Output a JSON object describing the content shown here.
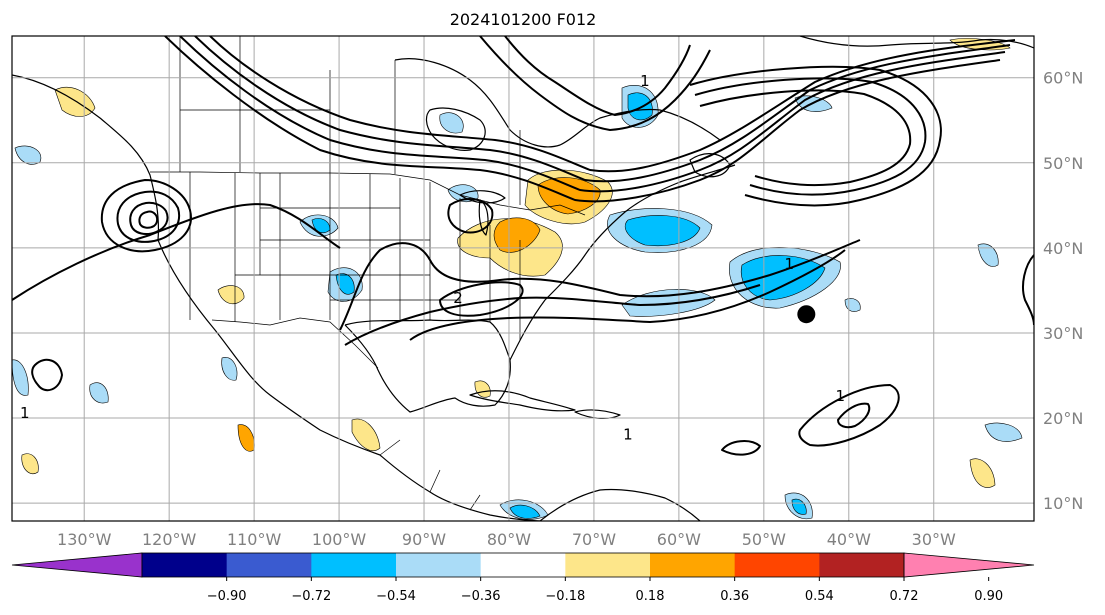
{
  "title": "2024101200 F012",
  "lon_labels": [
    "130°W",
    "120°W",
    "110°W",
    "100°W",
    "90°W",
    "80°W",
    "70°W",
    "60°W",
    "50°W",
    "40°W",
    "30°W"
  ],
  "lat_labels": [
    "60°N",
    "50°N",
    "40°N",
    "30°N",
    "20°N",
    "10°N"
  ],
  "contour_labels": [
    {
      "text": "1",
      "lon": -64,
      "lat": 59
    },
    {
      "text": "1",
      "lon": -47,
      "lat": 37.5
    },
    {
      "text": "1",
      "lon": -66,
      "lat": 17.5
    },
    {
      "text": "1",
      "lon": -41,
      "lat": 22
    },
    {
      "text": "1",
      "lon": -137,
      "lat": 20
    },
    {
      "text": "2",
      "lon": -86,
      "lat": 33.5
    }
  ],
  "colorbar": {
    "labels": [
      "−0.90",
      "−0.72",
      "−0.54",
      "−0.36",
      "−0.18",
      "0.18",
      "0.36",
      "0.54",
      "0.72",
      "0.90"
    ],
    "colors": [
      "#9932cc",
      "#00008b",
      "#3a5bd0",
      "#00bfff",
      "#aadcf7",
      "#ffffff",
      "#fde68a",
      "#ffa500",
      "#ff4500",
      "#b22222",
      "#ff80b0"
    ]
  },
  "marker": {
    "lon": -45,
    "lat": 32.2,
    "color": "#000000"
  }
}
